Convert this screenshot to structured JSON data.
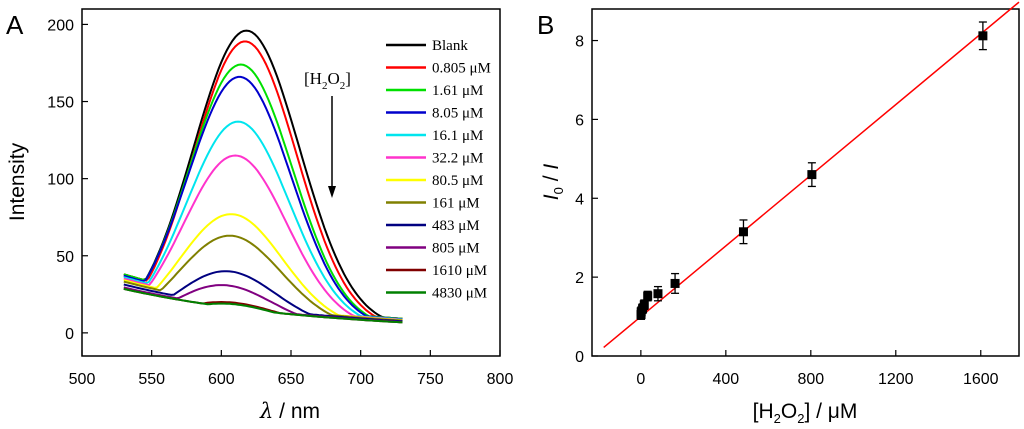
{
  "chart_data": [
    {
      "panel_label": "A",
      "type": "line",
      "xlabel_symbol": "λ",
      "xlabel_unit": " / nm",
      "ylabel": "Intensity",
      "xlim": [
        500,
        800
      ],
      "ylim": [
        -15,
        210
      ],
      "xticks": [
        "500",
        "550",
        "600",
        "650",
        "700",
        "750",
        "800"
      ],
      "yticks": [
        "0",
        "50",
        "100",
        "150",
        "200"
      ],
      "annotation": {
        "text_prefix": "[H",
        "sub1": "2",
        "text_mid": "O",
        "sub2": "2",
        "text_suffix": "]"
      },
      "series": [
        {
          "name": "Blank",
          "color": "#000000",
          "base": 40,
          "peak": 193,
          "center": 618,
          "width": 38
        },
        {
          "name": "0.805 μM",
          "color": "#ff0000",
          "base": 40,
          "peak": 186,
          "center": 617,
          "width": 37
        },
        {
          "name": "1.61 μM",
          "color": "#00e000",
          "base": 40,
          "peak": 171,
          "center": 614,
          "width": 37
        },
        {
          "name": "8.05 μM",
          "color": "#0000cc",
          "base": 39,
          "peak": 163,
          "center": 613,
          "width": 37
        },
        {
          "name": "16.1 μM",
          "color": "#00e5ee",
          "base": 38,
          "peak": 134,
          "center": 612,
          "width": 37
        },
        {
          "name": "32.2 μM",
          "color": "#ff33cc",
          "base": 37,
          "peak": 112,
          "center": 610,
          "width": 37
        },
        {
          "name": "80.5 μM",
          "color": "#ffff00",
          "base": 36,
          "peak": 74,
          "center": 607,
          "width": 37
        },
        {
          "name": "161 μM",
          "color": "#808000",
          "base": 35,
          "peak": 60,
          "center": 606,
          "width": 37
        },
        {
          "name": "483 μM",
          "color": "#000080",
          "base": 33,
          "peak": 37,
          "center": 603,
          "width": 36
        },
        {
          "name": "805 μM",
          "color": "#800080",
          "base": 31,
          "peak": 28,
          "center": 600,
          "width": 36
        },
        {
          "name": "1610 μM",
          "color": "#800000",
          "base": 30,
          "peak": 17,
          "center": 600,
          "width": 40
        },
        {
          "name": "4830 μM",
          "color": "#008000",
          "base": 30,
          "peak": 16,
          "center": 600,
          "width": 40
        }
      ]
    },
    {
      "panel_label": "B",
      "type": "scatter",
      "xlabel_prefix": "[H",
      "xlabel_sub1": "2",
      "xlabel_mid": "O",
      "xlabel_sub2": "2",
      "xlabel_suffix": "] / μM",
      "ylabel_I": "I",
      "ylabel_sub": "0",
      "ylabel_rest": " / ",
      "ylabel_I2": "I",
      "xlim": [
        -230,
        1780
      ],
      "ylim": [
        0,
        8.8
      ],
      "xticks": [
        "0",
        "400",
        "800",
        "1200",
        "1600"
      ],
      "yticks": [
        "0",
        "2",
        "4",
        "6",
        "8"
      ],
      "points": [
        {
          "x": 0.805,
          "y": 1.05,
          "err": 0.12
        },
        {
          "x": 1.61,
          "y": 1.12,
          "err": 0.12
        },
        {
          "x": 8.05,
          "y": 1.2,
          "err": 0.12
        },
        {
          "x": 16.1,
          "y": 1.3,
          "err": 0.12
        },
        {
          "x": 32.2,
          "y": 1.52,
          "err": 0.12
        },
        {
          "x": 80.5,
          "y": 1.58,
          "err": 0.18
        },
        {
          "x": 161,
          "y": 1.84,
          "err": 0.25
        },
        {
          "x": 483,
          "y": 3.15,
          "err": 0.3
        },
        {
          "x": 805,
          "y": 4.6,
          "err": 0.3
        },
        {
          "x": 1610,
          "y": 8.12,
          "err": 0.35
        }
      ],
      "fit_line": {
        "slope": 0.00448,
        "intercept": 1.0,
        "x_start": -175,
        "x_end": 1780,
        "color": "#ff0000"
      }
    }
  ]
}
